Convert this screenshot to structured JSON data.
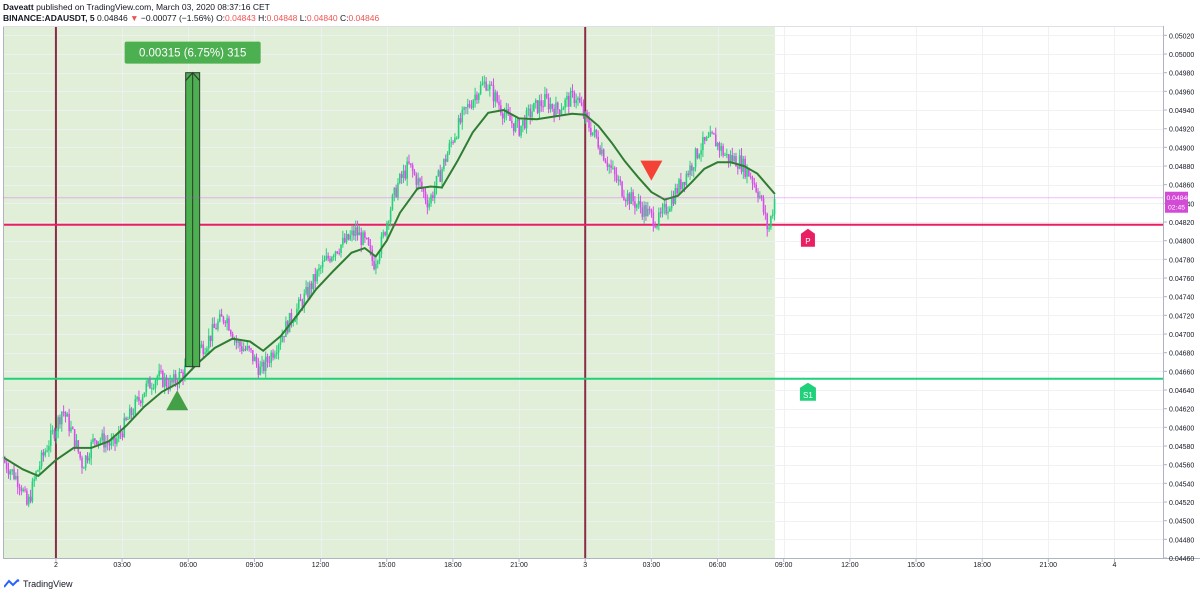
{
  "header": {
    "author": "Daveatt",
    "published_text": "published on TradingView.com, March 03, 2020 08:37:16 CET",
    "symbol": "BINANCE:ADAUSDT, 5",
    "last": "0.04846",
    "arrow": "▼",
    "change": "−0.00077 (−1.56%)",
    "o_label": "O:",
    "o_value": "0.04843",
    "h_label": "H:",
    "h_value": "0.04848",
    "l_label": "L:",
    "l_value": "0.04840",
    "c_label": "C:",
    "c_value": "0.04846"
  },
  "footer": {
    "brand": "TradingView",
    "logo_icon": "tradingview-logo-icon"
  },
  "colors": {
    "up": "#26d07c",
    "down": "#d64ee8",
    "ma": "#2e7d32",
    "shade": "#e1efd9",
    "pivot": "#e91e63",
    "support": "#21d07a",
    "measure": "#4caf50",
    "session": "#8b2b45"
  },
  "chart_data": {
    "type": "candlestick",
    "title": "",
    "ylim": [
      0.0446,
      0.0503
    ],
    "y_ticks": [
      "0.05020",
      "0.05000",
      "0.04980",
      "0.04960",
      "0.04940",
      "0.04920",
      "0.04900",
      "0.04880",
      "0.04860",
      "0.04840",
      "0.04820",
      "0.04800",
      "0.04780",
      "0.04760",
      "0.04740",
      "0.04720",
      "0.04700",
      "0.04680",
      "0.04660",
      "0.04640",
      "0.04620",
      "0.04600",
      "0.04580",
      "0.04560",
      "0.04540",
      "0.04520",
      "0.04500",
      "0.04480",
      "0.04460"
    ],
    "x_ticks": [
      {
        "label": "2",
        "hour": 0
      },
      {
        "label": "03:00",
        "hour": 3
      },
      {
        "label": "06:00",
        "hour": 6
      },
      {
        "label": "09:00",
        "hour": 9
      },
      {
        "label": "12:00",
        "hour": 12
      },
      {
        "label": "15:00",
        "hour": 15
      },
      {
        "label": "18:00",
        "hour": 18
      },
      {
        "label": "21:00",
        "hour": 21
      },
      {
        "label": "3",
        "hour": 24
      },
      {
        "label": "03:00",
        "hour": 27
      },
      {
        "label": "06:00",
        "hour": 30
      },
      {
        "label": "09:00",
        "hour": 33
      },
      {
        "label": "12:00",
        "hour": 36
      },
      {
        "label": "15:00",
        "hour": 39
      },
      {
        "label": "18:00",
        "hour": 42
      },
      {
        "label": "21:00",
        "hour": 45
      },
      {
        "label": "4",
        "hour": 48
      }
    ],
    "x_start_hour": -2.4,
    "x_end_hour": 50.2,
    "last_data_hour": 32.6,
    "price_path": [
      [
        -2.4,
        0.04565
      ],
      [
        -1.6,
        0.0454
      ],
      [
        -1.3,
        0.04515
      ],
      [
        -0.9,
        0.0455
      ],
      [
        -0.4,
        0.0458
      ],
      [
        0.0,
        0.046
      ],
      [
        0.3,
        0.0462
      ],
      [
        0.8,
        0.0459
      ],
      [
        1.2,
        0.0456
      ],
      [
        1.8,
        0.0459
      ],
      [
        2.6,
        0.0458
      ],
      [
        3.3,
        0.0461
      ],
      [
        4.0,
        0.0464
      ],
      [
        4.6,
        0.04655
      ],
      [
        5.2,
        0.04645
      ],
      [
        5.8,
        0.0466
      ],
      [
        6.3,
        0.0468
      ],
      [
        6.8,
        0.0469
      ],
      [
        7.3,
        0.0471
      ],
      [
        7.7,
        0.0472
      ],
      [
        8.2,
        0.0469
      ],
      [
        8.8,
        0.0468
      ],
      [
        9.3,
        0.0466
      ],
      [
        9.8,
        0.0468
      ],
      [
        10.5,
        0.0471
      ],
      [
        11.3,
        0.0474
      ],
      [
        12.0,
        0.0477
      ],
      [
        12.6,
        0.0479
      ],
      [
        13.2,
        0.048
      ],
      [
        13.6,
        0.0481
      ],
      [
        14.1,
        0.04795
      ],
      [
        14.4,
        0.04775
      ],
      [
        14.8,
        0.048
      ],
      [
        15.1,
        0.0483
      ],
      [
        15.5,
        0.0486
      ],
      [
        16.0,
        0.0488
      ],
      [
        16.5,
        0.0486
      ],
      [
        16.9,
        0.0484
      ],
      [
        17.4,
        0.0487
      ],
      [
        18.0,
        0.0491
      ],
      [
        18.6,
        0.0494
      ],
      [
        19.1,
        0.0496
      ],
      [
        19.5,
        0.0497
      ],
      [
        20.0,
        0.0495
      ],
      [
        20.5,
        0.0493
      ],
      [
        21.0,
        0.0492
      ],
      [
        21.6,
        0.0494
      ],
      [
        22.2,
        0.0495
      ],
      [
        22.7,
        0.0494
      ],
      [
        23.2,
        0.0495
      ],
      [
        23.6,
        0.04955
      ],
      [
        24.0,
        0.0493
      ],
      [
        24.5,
        0.0491
      ],
      [
        24.9,
        0.0489
      ],
      [
        25.3,
        0.0487
      ],
      [
        25.8,
        0.0485
      ],
      [
        26.3,
        0.0484
      ],
      [
        26.8,
        0.0483
      ],
      [
        27.3,
        0.0482
      ],
      [
        27.8,
        0.0484
      ],
      [
        28.3,
        0.0486
      ],
      [
        28.8,
        0.0488
      ],
      [
        29.2,
        0.049
      ],
      [
        29.8,
        0.0491
      ],
      [
        30.4,
        0.0489
      ],
      [
        31.0,
        0.04885
      ],
      [
        31.5,
        0.0487
      ],
      [
        31.9,
        0.0485
      ],
      [
        32.3,
        0.0481
      ],
      [
        32.6,
        0.04846
      ]
    ],
    "moving_average": [
      [
        -2.4,
        0.04568
      ],
      [
        -1.5,
        0.04555
      ],
      [
        -0.8,
        0.04548
      ],
      [
        0.0,
        0.04565
      ],
      [
        0.8,
        0.04578
      ],
      [
        1.6,
        0.04578
      ],
      [
        2.4,
        0.04585
      ],
      [
        3.2,
        0.04602
      ],
      [
        4.0,
        0.04622
      ],
      [
        4.8,
        0.04638
      ],
      [
        5.6,
        0.04648
      ],
      [
        6.4,
        0.04668
      ],
      [
        7.2,
        0.04685
      ],
      [
        8.0,
        0.04695
      ],
      [
        8.8,
        0.04692
      ],
      [
        9.4,
        0.04682
      ],
      [
        10.2,
        0.04698
      ],
      [
        11.0,
        0.04722
      ],
      [
        11.8,
        0.04748
      ],
      [
        12.6,
        0.04768
      ],
      [
        13.4,
        0.04787
      ],
      [
        14.0,
        0.04792
      ],
      [
        14.5,
        0.04783
      ],
      [
        15.0,
        0.048
      ],
      [
        15.6,
        0.0483
      ],
      [
        16.4,
        0.04856
      ],
      [
        17.0,
        0.04858
      ],
      [
        17.5,
        0.04857
      ],
      [
        18.2,
        0.04885
      ],
      [
        18.9,
        0.04916
      ],
      [
        19.6,
        0.04937
      ],
      [
        20.3,
        0.0494
      ],
      [
        21.0,
        0.04931
      ],
      [
        21.8,
        0.0493
      ],
      [
        22.6,
        0.04933
      ],
      [
        23.4,
        0.04936
      ],
      [
        24.0,
        0.04935
      ],
      [
        24.6,
        0.04923
      ],
      [
        25.2,
        0.04905
      ],
      [
        25.8,
        0.04885
      ],
      [
        26.4,
        0.04868
      ],
      [
        27.0,
        0.04852
      ],
      [
        27.6,
        0.04844
      ],
      [
        28.2,
        0.04848
      ],
      [
        28.8,
        0.04862
      ],
      [
        29.4,
        0.04877
      ],
      [
        30.0,
        0.04884
      ],
      [
        30.6,
        0.04884
      ],
      [
        31.2,
        0.0488
      ],
      [
        31.8,
        0.04872
      ],
      [
        32.6,
        0.0485
      ]
    ],
    "session_breaks_hour": [
      0,
      24
    ],
    "levels": [
      {
        "name": "P",
        "price": 0.04817
      },
      {
        "name": "S1",
        "price": 0.04652
      }
    ],
    "current_price": {
      "value": "0.04846",
      "countdown": "02:45",
      "price": 0.04846
    },
    "measure": {
      "label": "0.00315 (6.75%) 315",
      "hour": 6.2,
      "from": 0.04665,
      "to": 0.0498
    },
    "markers": [
      {
        "type": "buy",
        "hour": 5.5,
        "price": 0.04629
      },
      {
        "type": "sell",
        "hour": 27.0,
        "price": 0.04875
      }
    ]
  }
}
